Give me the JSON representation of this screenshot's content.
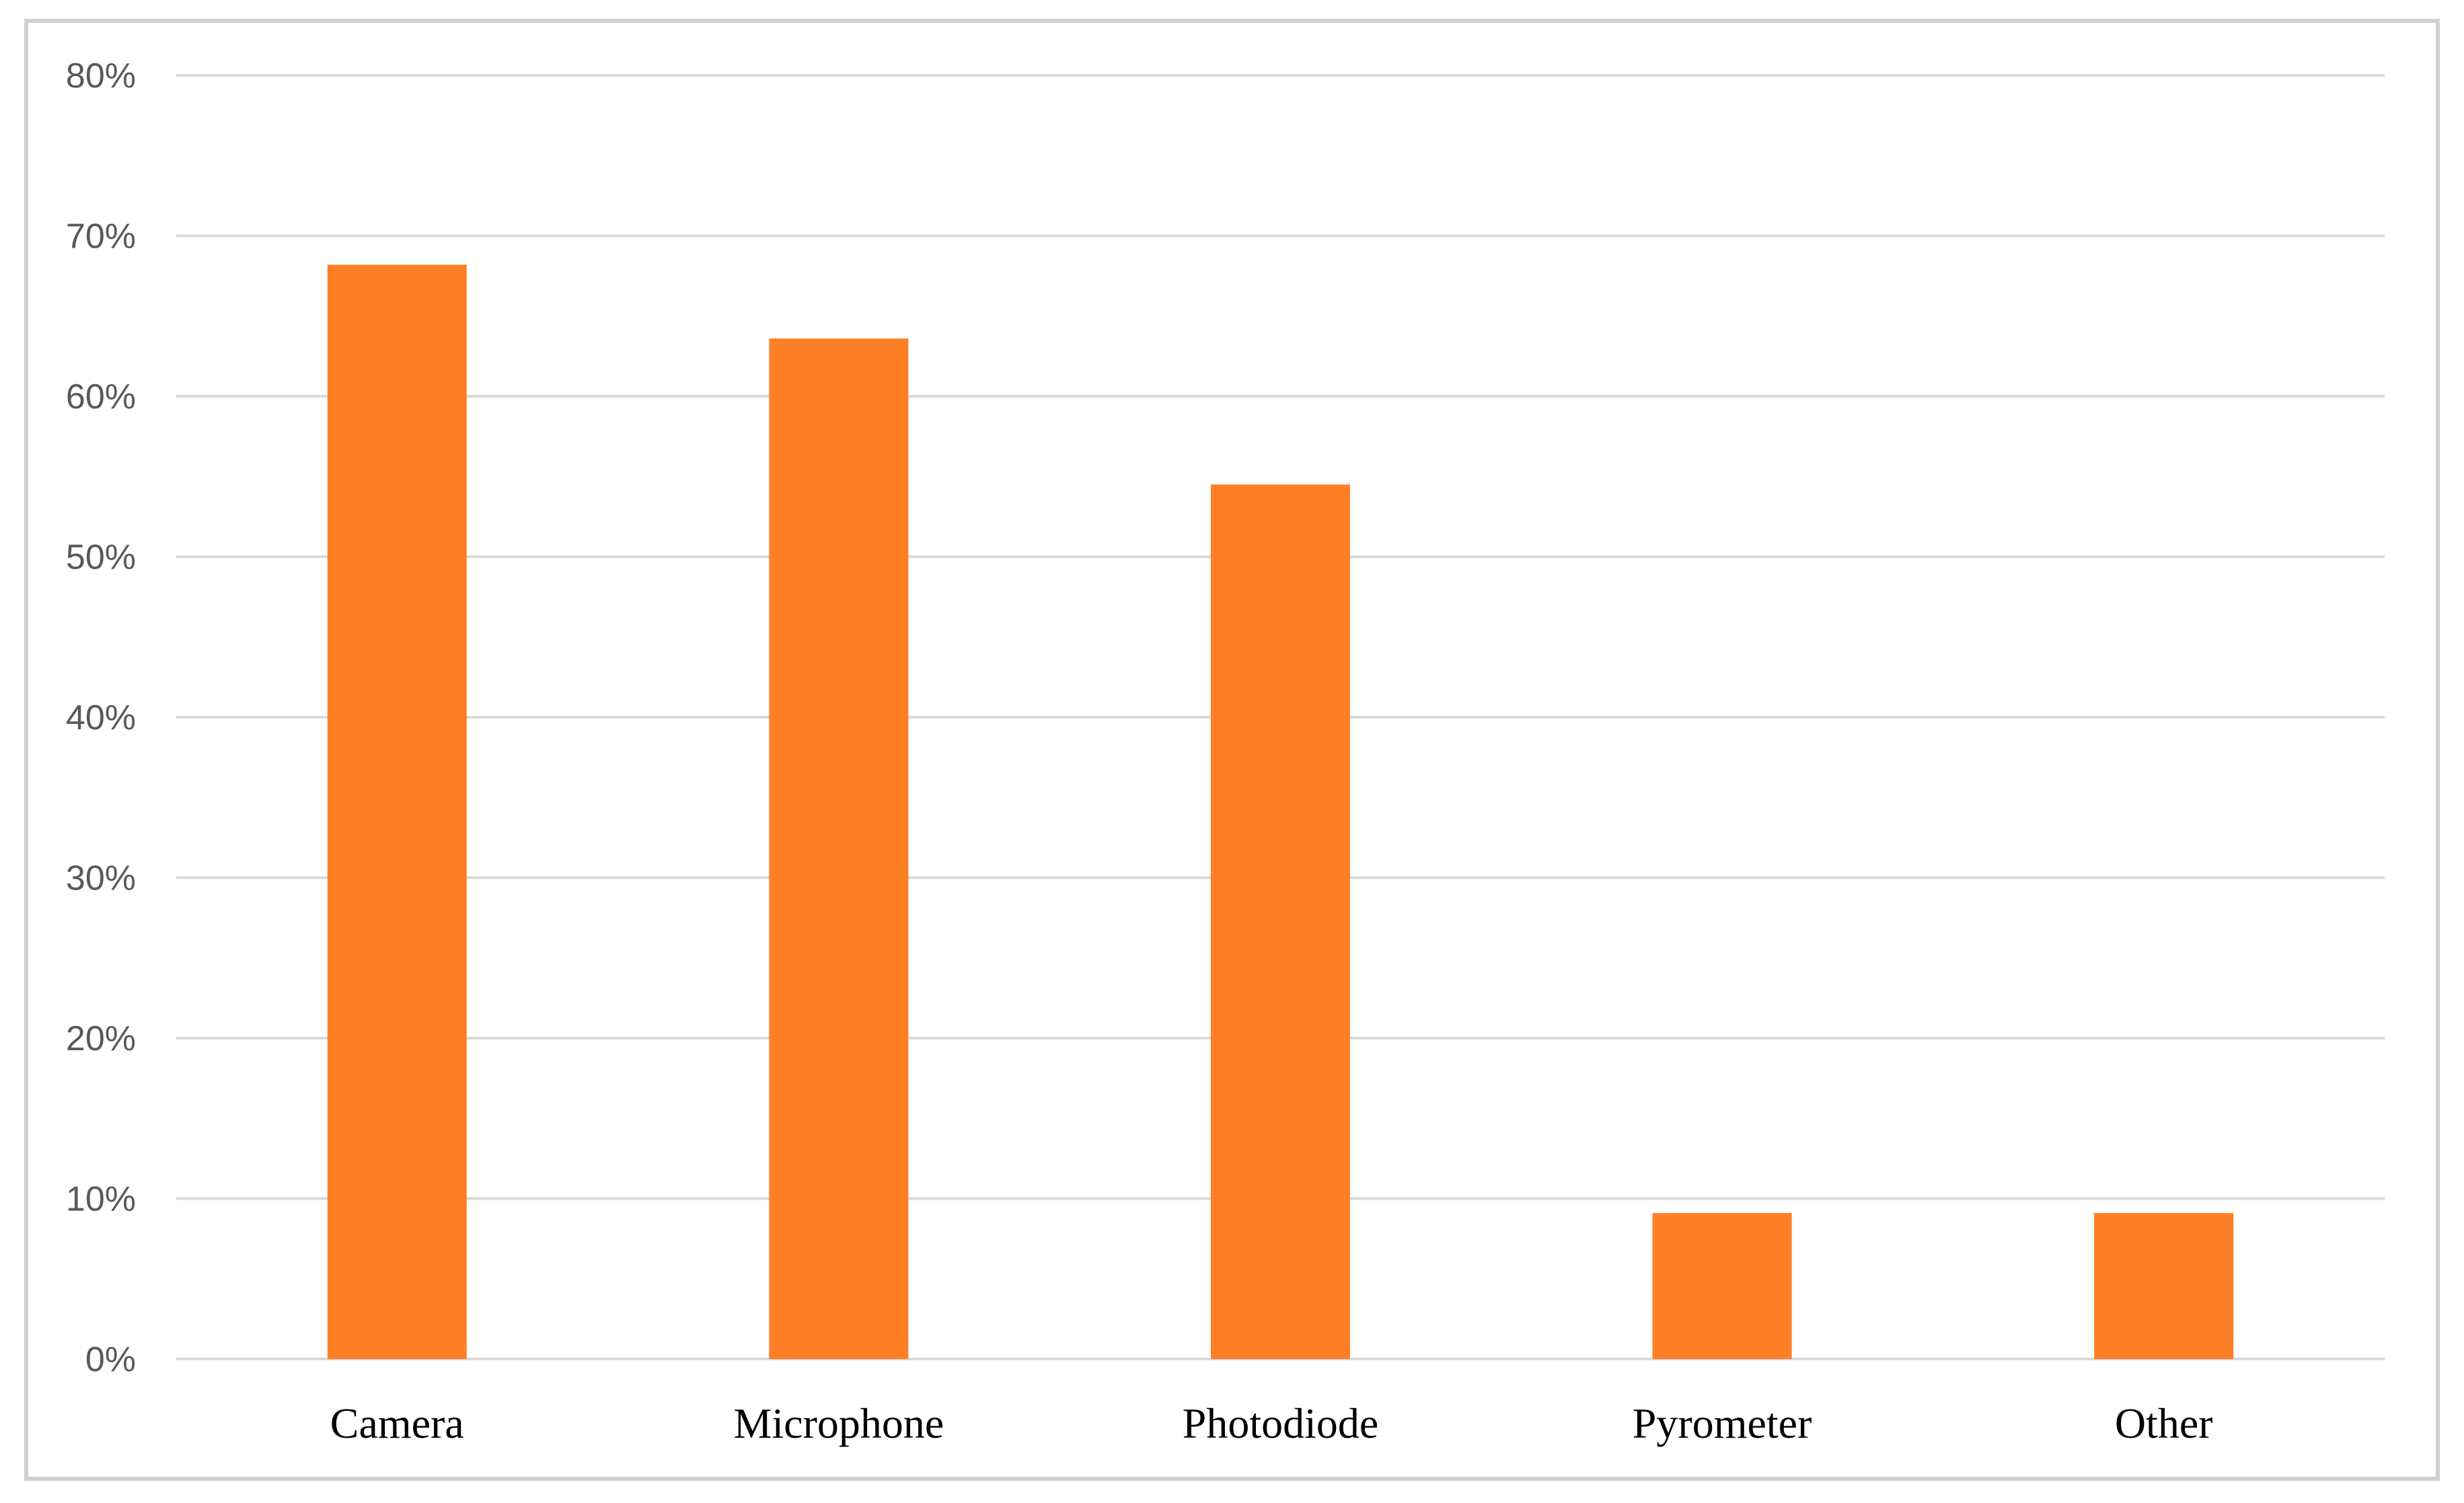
{
  "chart_data": {
    "type": "bar",
    "categories": [
      "Camera",
      "Microphone",
      "Photodiode",
      "Pyrometer",
      "Other"
    ],
    "values": [
      68.2,
      63.6,
      54.5,
      9.1,
      9.1
    ],
    "y_ticks": [
      "0%",
      "10%",
      "20%",
      "30%",
      "40%",
      "50%",
      "60%",
      "70%",
      "80%"
    ],
    "ylim": [
      0,
      80
    ],
    "title": "",
    "xlabel": "",
    "ylabel": "",
    "bar_color": "#FF7F27",
    "grid": true,
    "legend": "none"
  }
}
